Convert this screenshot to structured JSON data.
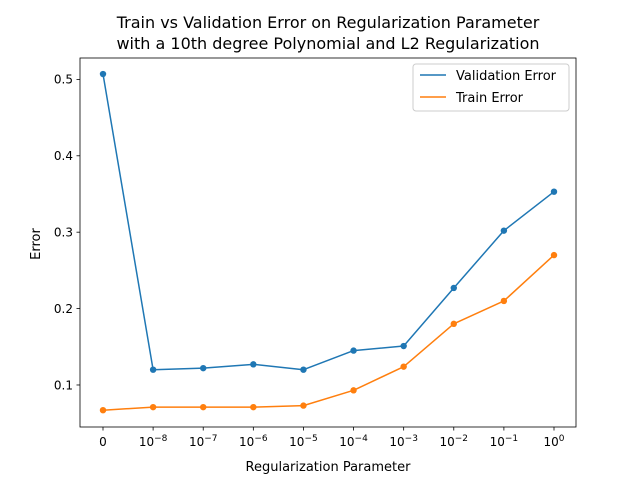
{
  "chart_data": {
    "type": "line",
    "title": [
      "Train vs Validation Error on Regularization Parameter",
      "with a 10th degree Polynomial and L2 Regularization"
    ],
    "xlabel": "Regularization Parameter",
    "ylabel": "Error",
    "categories": [
      "0",
      "10^-8",
      "10^-7",
      "10^-6",
      "10^-5",
      "10^-4",
      "10^-3",
      "10^-2",
      "10^-1",
      "10^0"
    ],
    "x_tick_labels": [
      {
        "base": "0",
        "exp": ""
      },
      {
        "base": "10",
        "exp": "−8"
      },
      {
        "base": "10",
        "exp": "−7"
      },
      {
        "base": "10",
        "exp": "−6"
      },
      {
        "base": "10",
        "exp": "−5"
      },
      {
        "base": "10",
        "exp": "−4"
      },
      {
        "base": "10",
        "exp": "−3"
      },
      {
        "base": "10",
        "exp": "−2"
      },
      {
        "base": "10",
        "exp": "−1"
      },
      {
        "base": "10",
        "exp": "0"
      }
    ],
    "yticks": [
      0.1,
      0.2,
      0.3,
      0.4,
      0.5
    ],
    "ylim": [
      0.045,
      0.528
    ],
    "grid": false,
    "legend_position": "top-right",
    "series": [
      {
        "name": "Validation Error",
        "color": "#1f77b4",
        "values": [
          0.507,
          0.12,
          0.122,
          0.127,
          0.12,
          0.145,
          0.151,
          0.227,
          0.302,
          0.353
        ]
      },
      {
        "name": "Train Error",
        "color": "#ff7f0e",
        "values": [
          0.067,
          0.071,
          0.071,
          0.071,
          0.073,
          0.093,
          0.124,
          0.18,
          0.21,
          0.27
        ]
      }
    ]
  }
}
